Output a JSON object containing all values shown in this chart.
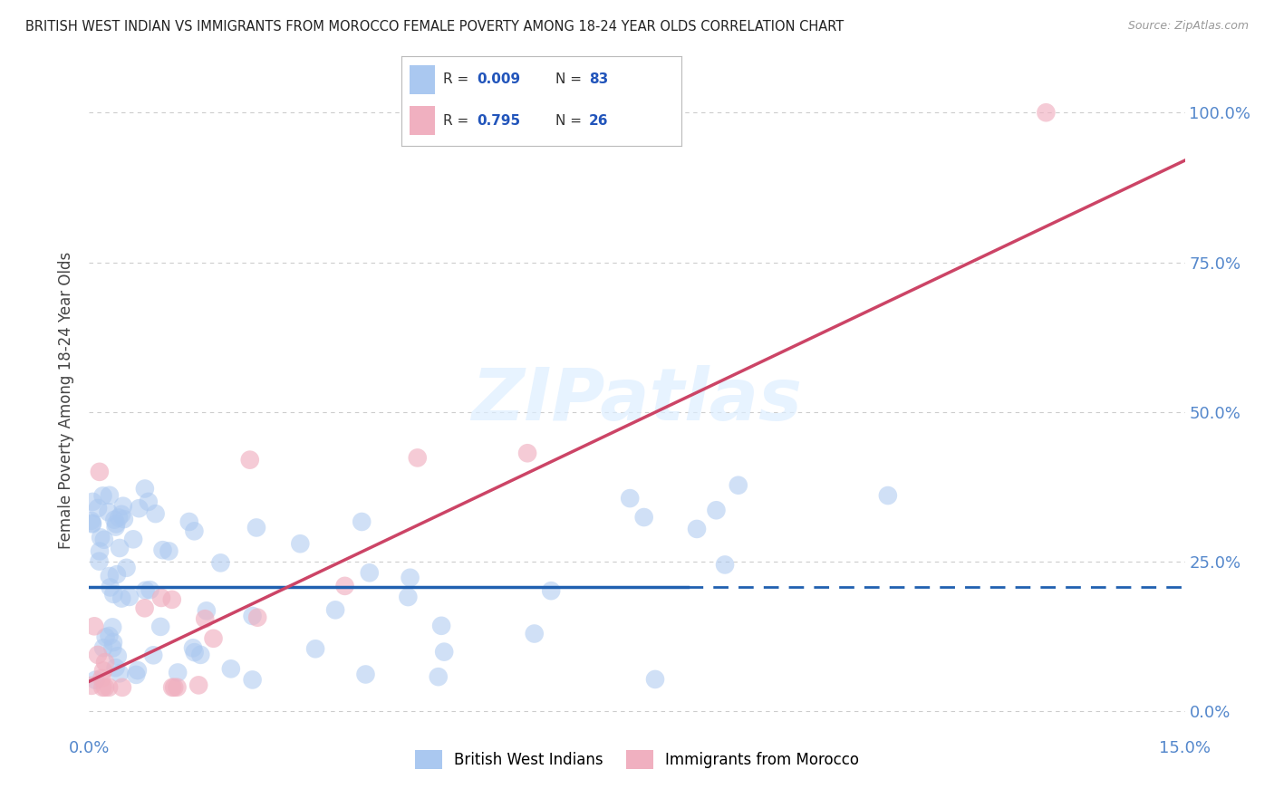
{
  "title": "BRITISH WEST INDIAN VS IMMIGRANTS FROM MOROCCO FEMALE POVERTY AMONG 18-24 YEAR OLDS CORRELATION CHART",
  "source": "Source: ZipAtlas.com",
  "ylabel": "Female Poverty Among 18-24 Year Olds",
  "xlim": [
    0.0,
    0.15
  ],
  "ylim": [
    -0.04,
    1.08
  ],
  "yticks": [
    0.0,
    0.25,
    0.5,
    0.75,
    1.0
  ],
  "ytick_labels": [
    "0.0%",
    "25.0%",
    "50.0%",
    "75.0%",
    "100.0%"
  ],
  "group1_name": "British West Indians",
  "group1_R": "0.009",
  "group1_N": "83",
  "group1_color": "#aac8f0",
  "group1_line_color": "#2060b0",
  "group2_name": "Immigrants from Morocco",
  "group2_R": "0.795",
  "group2_N": "26",
  "group2_color": "#f0b0c0",
  "group2_line_color": "#cc4466",
  "watermark": "ZIPatlas",
  "axis_tick_color": "#5588cc",
  "legend_R_color": "#2255bb",
  "bg_color": "#ffffff",
  "grid_color": "#cccccc",
  "group1_line_solid_end": 0.082,
  "group1_line_y": 0.208,
  "group2_line_x0": 0.0,
  "group2_line_y0": 0.05,
  "group2_line_x1": 0.15,
  "group2_line_y1": 0.92
}
